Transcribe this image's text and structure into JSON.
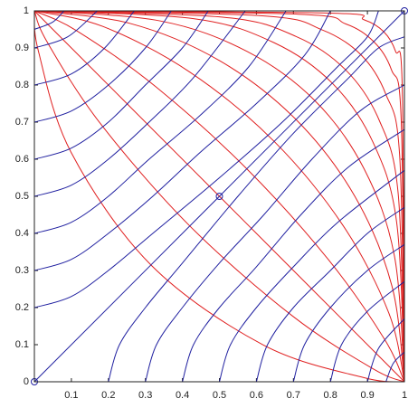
{
  "chart_data": {
    "type": "line",
    "xlim": [
      0,
      1
    ],
    "ylim": [
      0,
      1
    ],
    "xticks": [
      0.1,
      0.2,
      0.3,
      0.4,
      0.5,
      0.6,
      0.7,
      0.8,
      0.9,
      1
    ],
    "yticks": [
      0,
      0.1,
      0.2,
      0.3,
      0.4,
      0.5,
      0.6,
      0.7,
      0.8,
      0.9,
      1
    ],
    "series": [
      {
        "color": "#e02020",
        "x": [
          1,
          0.891,
          0.619,
          0.315,
          0.099,
          0.011,
          0
        ],
        "values": [
          0,
          0.011,
          0.099,
          0.315,
          0.619,
          0.891,
          1
        ]
      },
      {
        "color": "#e02020",
        "x": [
          1,
          0.917,
          0.698,
          0.42,
          0.177,
          0.034,
          0
        ],
        "values": [
          0,
          0.034,
          0.177,
          0.42,
          0.698,
          0.917,
          1
        ]
      },
      {
        "color": "#e02020",
        "x": [
          1,
          0.933,
          0.75,
          0.5,
          0.25,
          0.067,
          0
        ],
        "values": [
          0,
          0.067,
          0.25,
          0.5,
          0.75,
          0.933,
          1
        ]
      },
      {
        "color": "#e02020",
        "x": [
          1,
          0.946,
          0.794,
          0.574,
          0.33,
          0.115,
          0
        ],
        "values": [
          0,
          0.115,
          0.33,
          0.574,
          0.794,
          0.946,
          1
        ]
      },
      {
        "color": "#e02020",
        "x": [
          1,
          0.958,
          0.835,
          0.648,
          0.42,
          0.185,
          0
        ],
        "values": [
          0,
          0.185,
          0.42,
          0.648,
          0.835,
          0.958,
          1
        ]
      },
      {
        "color": "#e02020",
        "x": [
          1,
          0.966,
          0.866,
          0.707,
          0.5,
          0.259,
          0
        ],
        "values": [
          0,
          0.259,
          0.5,
          0.707,
          0.866,
          0.966,
          1
        ]
      },
      {
        "color": "#e02020",
        "x": [
          1,
          0.973,
          0.891,
          0.758,
          0.574,
          0.339,
          0
        ],
        "values": [
          0,
          0.339,
          0.574,
          0.758,
          0.891,
          0.973,
          1
        ]
      },
      {
        "color": "#e02020",
        "x": [
          1,
          0.979,
          0.914,
          0.805,
          0.648,
          0.43,
          0
        ],
        "values": [
          0,
          0.43,
          0.648,
          0.805,
          0.914,
          0.979,
          1
        ]
      },
      {
        "color": "#e02020",
        "x": [
          1,
          0.983,
          0.931,
          0.841,
          0.707,
          0.509,
          0
        ],
        "values": [
          0,
          0.509,
          0.707,
          0.841,
          0.931,
          0.983,
          1
        ]
      },
      {
        "color": "#e02020",
        "x": [
          1,
          0.987,
          0.949,
          0.882,
          0.777,
          0.612,
          0
        ],
        "values": [
          0,
          0.612,
          0.777,
          0.882,
          0.949,
          0.987,
          1
        ]
      },
      {
        "color": "#e02020",
        "x": [
          1,
          0.991,
          0.965,
          0.917,
          0.841,
          0.713,
          0
        ],
        "values": [
          0,
          0.713,
          0.841,
          0.917,
          0.965,
          0.991,
          1
        ]
      },
      {
        "color": "#e02020",
        "x": [
          1,
          0.994,
          0.976,
          0.944,
          0.891,
          0.798,
          0
        ],
        "values": [
          0,
          0.798,
          0.891,
          0.944,
          0.976,
          0.994,
          1
        ]
      },
      {
        "color": "#2020a0",
        "x": [
          0.2,
          0.23,
          0.3,
          0.4,
          0.55,
          0.7,
          0.85,
          0.93,
          1
        ],
        "values": [
          0,
          0.1,
          0.2,
          0.32,
          0.5,
          0.67,
          0.82,
          0.9,
          0.93
        ]
      },
      {
        "color": "#2020a0",
        "x": [
          0.3,
          0.33,
          0.4,
          0.5,
          0.62,
          0.75,
          0.88,
          1
        ],
        "values": [
          0,
          0.1,
          0.2,
          0.32,
          0.45,
          0.6,
          0.73,
          0.8
        ]
      },
      {
        "color": "#2020a0",
        "x": [
          0.4,
          0.43,
          0.5,
          0.6,
          0.72,
          0.85,
          1
        ],
        "values": [
          0,
          0.1,
          0.2,
          0.31,
          0.45,
          0.58,
          0.68
        ]
      },
      {
        "color": "#2020a0",
        "x": [
          0.5,
          0.53,
          0.6,
          0.7,
          0.82,
          1
        ],
        "values": [
          0,
          0.1,
          0.2,
          0.31,
          0.43,
          0.57
        ]
      },
      {
        "color": "#2020a0",
        "x": [
          0.6,
          0.63,
          0.7,
          0.8,
          0.9,
          1
        ],
        "values": [
          0,
          0.1,
          0.2,
          0.3,
          0.4,
          0.47
        ]
      },
      {
        "color": "#2020a0",
        "x": [
          0.7,
          0.73,
          0.8,
          0.9,
          1
        ],
        "values": [
          0,
          0.1,
          0.2,
          0.3,
          0.37
        ]
      },
      {
        "color": "#2020a0",
        "x": [
          0.8,
          0.83,
          0.9,
          1
        ],
        "values": [
          0,
          0.1,
          0.19,
          0.27
        ]
      },
      {
        "color": "#2020a0",
        "x": [
          0.9,
          0.93,
          1
        ],
        "values": [
          0,
          0.09,
          0.17
        ]
      },
      {
        "color": "#2020a0",
        "x": [
          0.95,
          0.97,
          1
        ],
        "values": [
          0,
          0.05,
          0.08
        ]
      },
      {
        "color": "#2020a0",
        "x": [
          0,
          0.1,
          0.2,
          0.32,
          0.5,
          0.67,
          0.82,
          0.9,
          0.93
        ],
        "values": [
          0.2,
          0.23,
          0.3,
          0.4,
          0.55,
          0.7,
          0.85,
          0.93,
          1
        ]
      },
      {
        "color": "#2020a0",
        "x": [
          0,
          0.1,
          0.2,
          0.32,
          0.45,
          0.6,
          0.73,
          0.8
        ],
        "values": [
          0.3,
          0.33,
          0.4,
          0.5,
          0.62,
          0.75,
          0.88,
          1
        ]
      },
      {
        "color": "#2020a0",
        "x": [
          0,
          0.1,
          0.2,
          0.31,
          0.45,
          0.58,
          0.68
        ],
        "values": [
          0.4,
          0.43,
          0.5,
          0.6,
          0.72,
          0.85,
          1
        ]
      },
      {
        "color": "#2020a0",
        "x": [
          0,
          0.1,
          0.2,
          0.31,
          0.43,
          0.57
        ],
        "values": [
          0.5,
          0.53,
          0.6,
          0.7,
          0.82,
          1
        ]
      },
      {
        "color": "#2020a0",
        "x": [
          0,
          0.1,
          0.2,
          0.3,
          0.4,
          0.47
        ],
        "values": [
          0.6,
          0.63,
          0.7,
          0.8,
          0.9,
          1
        ]
      },
      {
        "color": "#2020a0",
        "x": [
          0,
          0.1,
          0.2,
          0.3,
          0.37
        ],
        "values": [
          0.7,
          0.73,
          0.8,
          0.9,
          1
        ]
      },
      {
        "color": "#2020a0",
        "x": [
          0,
          0.1,
          0.19,
          0.27
        ],
        "values": [
          0.8,
          0.83,
          0.9,
          1
        ]
      },
      {
        "color": "#2020a0",
        "x": [
          0,
          0.09,
          0.17
        ],
        "values": [
          0.9,
          0.93,
          1
        ]
      },
      {
        "color": "#2020a0",
        "x": [
          0,
          0.05,
          0.08
        ],
        "values": [
          0.95,
          0.97,
          1
        ]
      },
      {
        "color": "#2020a0",
        "x": [
          0,
          0.5,
          1
        ],
        "values": [
          0,
          0.5,
          1
        ],
        "marker": "o"
      }
    ]
  }
}
